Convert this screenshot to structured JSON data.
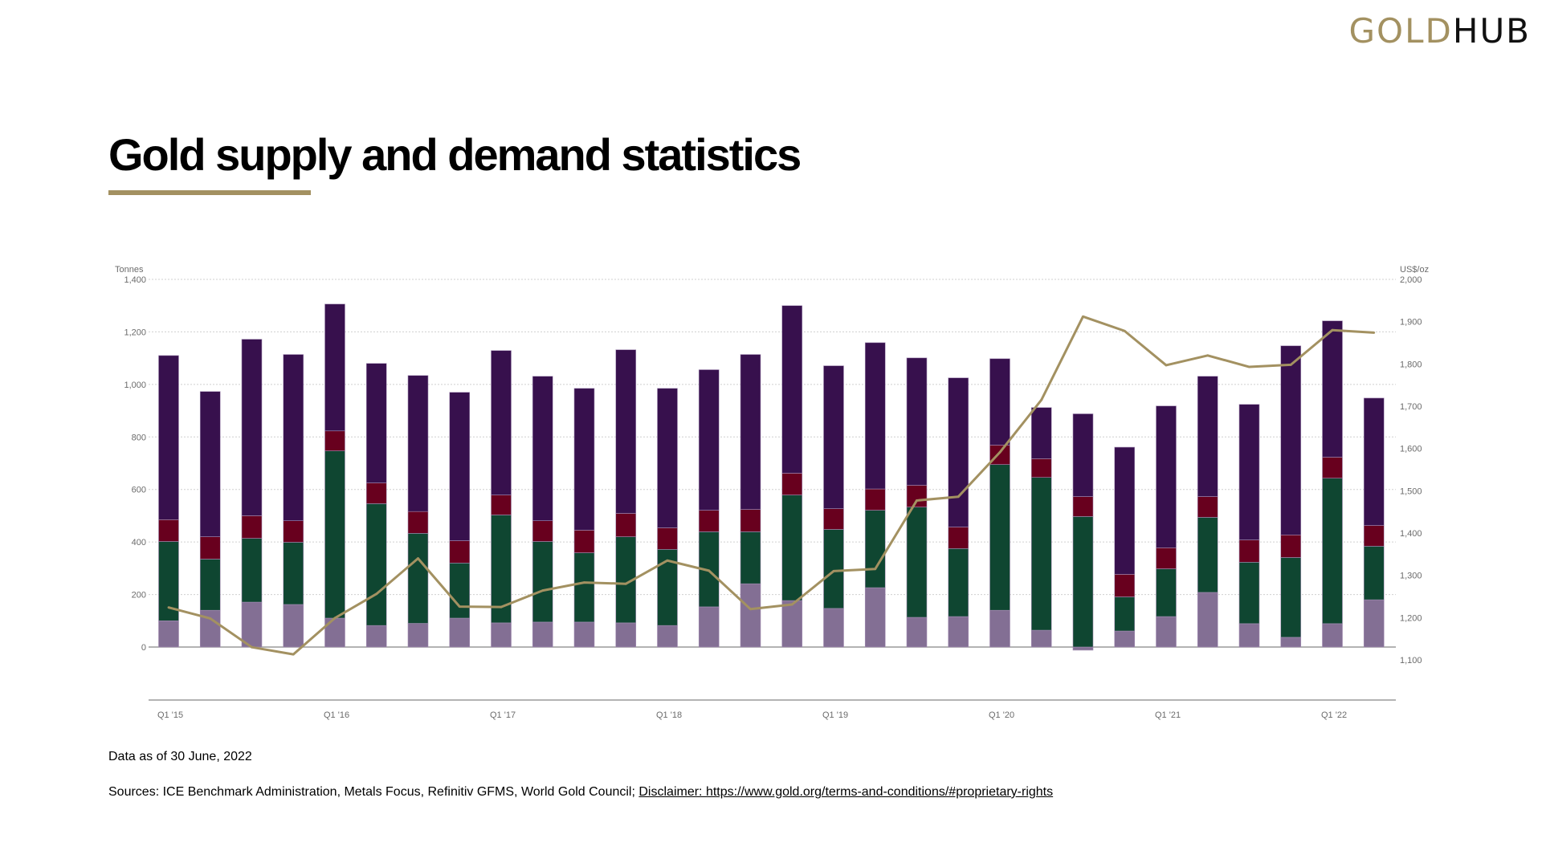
{
  "header": {
    "logo_gold": "GOLD",
    "logo_hub": "HUB",
    "title": "Gold supply and demand statistics"
  },
  "footer": {
    "as_of": "Data as of 30 June, 2022",
    "sources_prefix": "Sources: ICE Benchmark Administration, Metals Focus, Refinitiv GFMS, World Gold Council; ",
    "disclaimer_link": "Disclaimer: https://www.gold.org/terms-and-conditions/#proprietary-rights"
  },
  "colors": {
    "accent_gold": "#A39161",
    "segment_1": "#836F94",
    "segment_2": "#0F4631",
    "segment_3": "#68001E",
    "segment_4": "#37104D",
    "price_line": "#A39161"
  },
  "chart_data": {
    "type": "bar",
    "subtype": "stacked-bar-with-line",
    "title": "Gold supply and demand statistics",
    "ylabel": "Tonnes",
    "y2label": "US$/oz",
    "ylim": [
      -200,
      1400
    ],
    "y2lim": [
      1100,
      2000
    ],
    "yticks": [
      "0",
      "200",
      "400",
      "600",
      "800",
      "1,000",
      "1,200",
      "1,400"
    ],
    "y2ticks": [
      "1,100",
      "1,200",
      "1,300",
      "1,400",
      "1,500",
      "1,600",
      "1,700",
      "1,800",
      "1,900",
      "2,000"
    ],
    "x_tick_labels": [
      "Q1 '15",
      "Q1 '16",
      "Q1 '17",
      "Q1 '18",
      "Q1 '19",
      "Q1 '20",
      "Q1 '21",
      "Q1 '22"
    ],
    "grid": true,
    "legend": "none",
    "categories": [
      "Q1 '15",
      "Q2 '15",
      "Q3 '15",
      "Q4 '15",
      "Q1 '16",
      "Q2 '16",
      "Q3 '16",
      "Q4 '16",
      "Q1 '17",
      "Q2 '17",
      "Q3 '17",
      "Q4 '17",
      "Q1 '18",
      "Q2 '18",
      "Q3 '18",
      "Q4 '18",
      "Q1 '19",
      "Q2 '19",
      "Q3 '19",
      "Q4 '19",
      "Q1 '20",
      "Q2 '20",
      "Q3 '20",
      "Q4 '20",
      "Q1 '21",
      "Q2 '21",
      "Q3 '21",
      "Q4 '21",
      "Q1 '22",
      "Q2 '22"
    ],
    "series": [
      {
        "name": "Segment 1 (light purple)",
        "axis": "left",
        "type": "bar",
        "values": [
          100,
          140,
          171,
          162,
          110,
          82,
          90,
          110,
          92,
          95,
          95,
          92,
          82,
          153,
          241,
          177,
          147,
          226,
          113,
          116,
          140,
          64,
          -12,
          61,
          116,
          208,
          89,
          37,
          89,
          180
        ]
      },
      {
        "name": "Segment 2 (green)",
        "axis": "left",
        "type": "bar",
        "values": [
          302,
          195,
          243,
          237,
          637,
          464,
          343,
          210,
          411,
          307,
          264,
          328,
          290,
          286,
          198,
          402,
          301,
          295,
          420,
          259,
          555,
          582,
          497,
          130,
          182,
          286,
          234,
          304,
          554,
          204
        ]
      },
      {
        "name": "Segment 3 (red)",
        "axis": "left",
        "type": "bar",
        "values": [
          83,
          85,
          86,
          82,
          76,
          79,
          83,
          85,
          76,
          79,
          86,
          89,
          82,
          82,
          85,
          83,
          79,
          81,
          83,
          82,
          74,
          71,
          76,
          86,
          80,
          79,
          85,
          86,
          80,
          79
        ]
      },
      {
        "name": "Segment 4 (dark purple)",
        "axis": "left",
        "type": "bar",
        "values": [
          625,
          553,
          672,
          633,
          483,
          455,
          518,
          565,
          550,
          550,
          540,
          623,
          531,
          535,
          590,
          638,
          544,
          557,
          485,
          568,
          329,
          195,
          315,
          484,
          540,
          458,
          516,
          720,
          519,
          485
        ]
      },
      {
        "name": "Gold price (US$/oz)",
        "axis": "right",
        "type": "line",
        "values": [
          1224,
          1198,
          1130,
          1113,
          1199,
          1256,
          1340,
          1226,
          1225,
          1264,
          1283,
          1280,
          1335,
          1311,
          1220,
          1231,
          1310,
          1315,
          1477,
          1486,
          1591,
          1715,
          1912,
          1878,
          1797,
          1820,
          1793,
          1798,
          1880,
          1874
        ]
      }
    ]
  }
}
